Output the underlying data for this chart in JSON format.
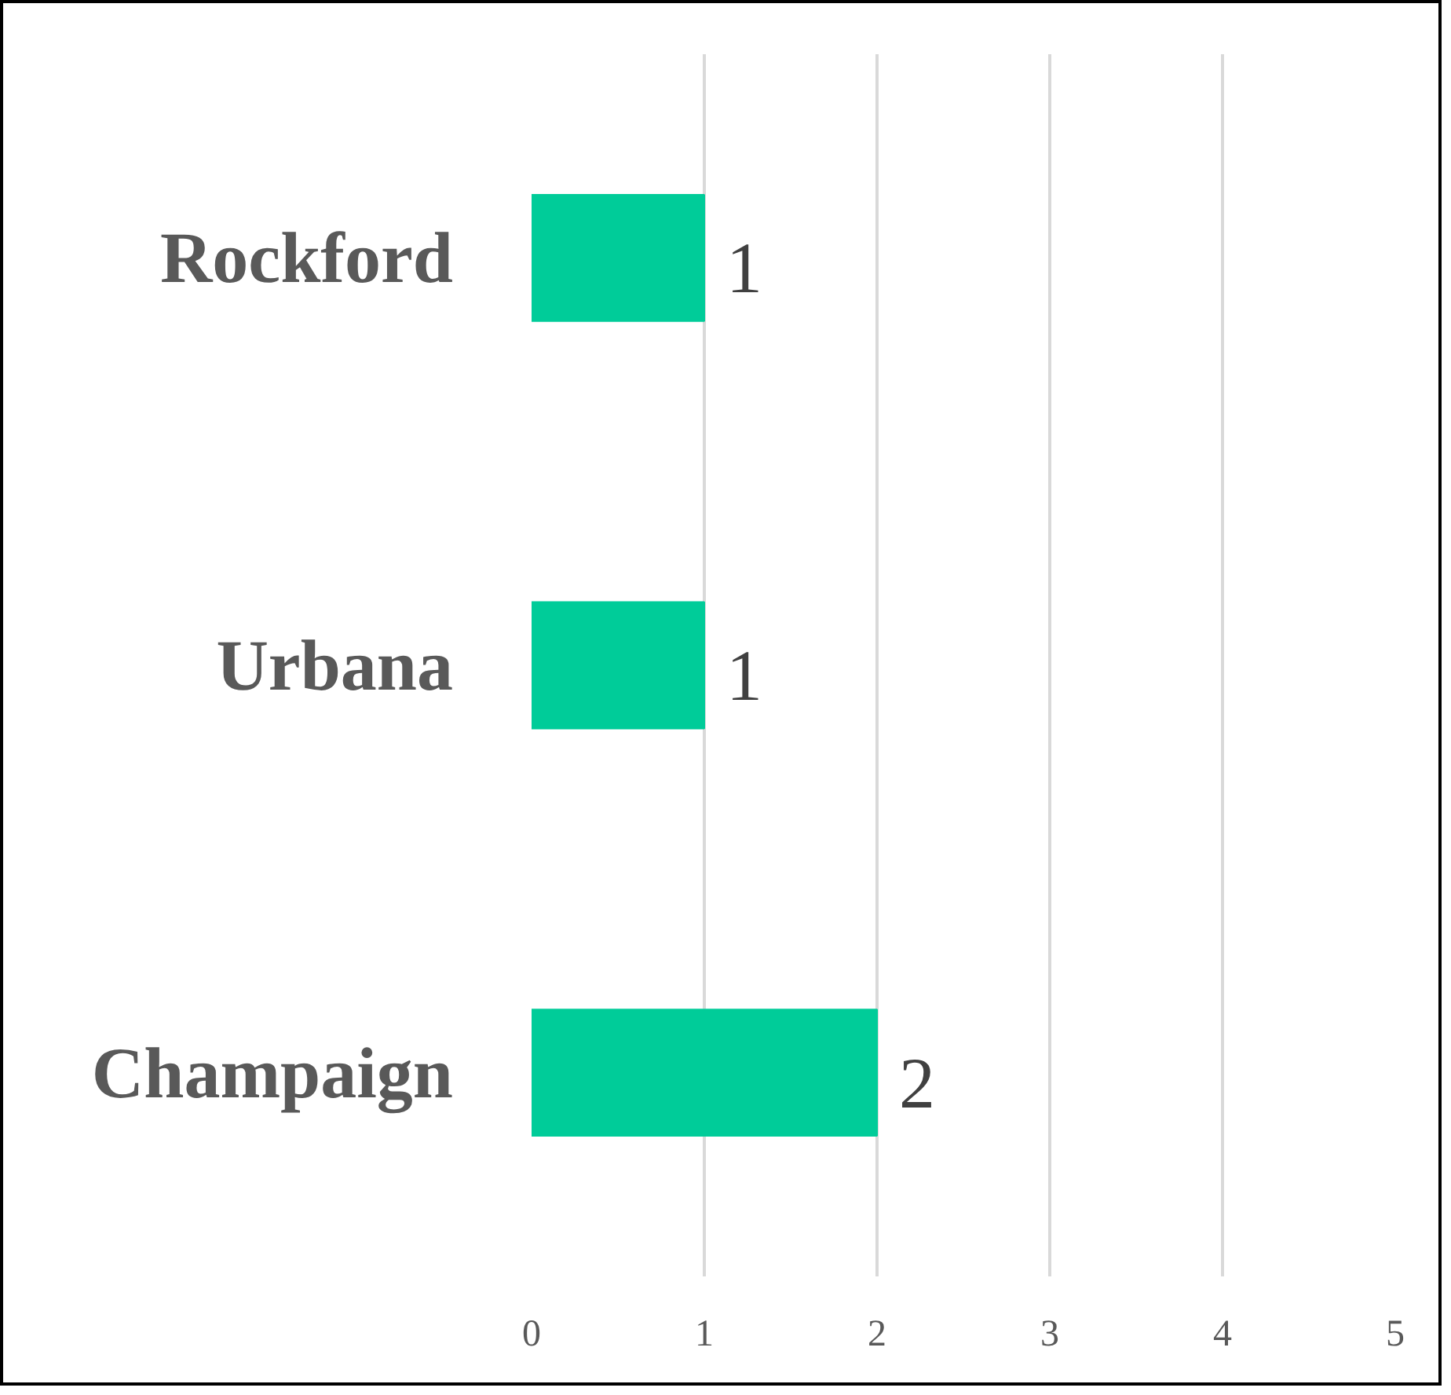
{
  "chart_data": {
    "type": "bar",
    "orientation": "horizontal",
    "categories": [
      "Rockford",
      "Urbana",
      "Champaign"
    ],
    "values": [
      1,
      1,
      2
    ],
    "color": "#00cc99",
    "xlim": [
      0,
      5
    ],
    "xticks": [
      0,
      1,
      2,
      3,
      4,
      5
    ],
    "grid": "x",
    "data_labels": true
  }
}
